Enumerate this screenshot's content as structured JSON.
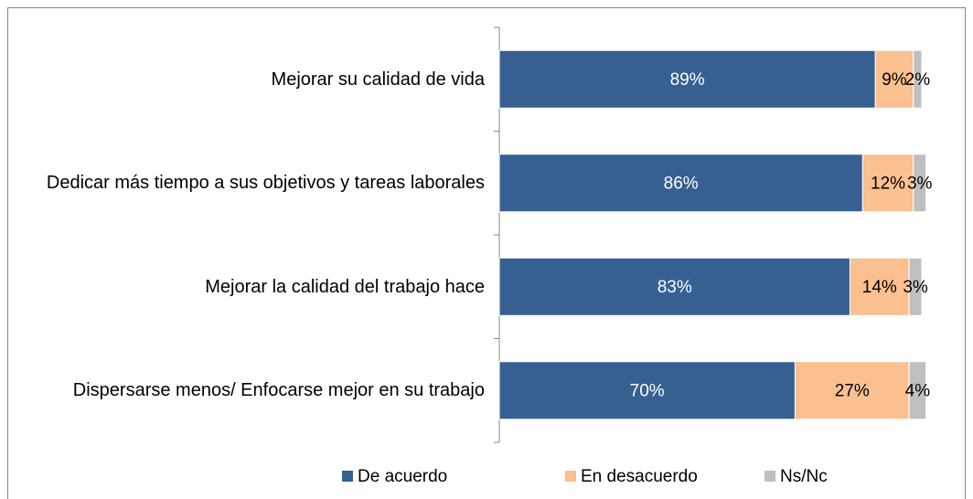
{
  "chart_data": {
    "type": "stacked_barh",
    "categories": [
      "Mejorar su calidad de vida",
      "Dedicar más tiempo a sus objetivos y tareas laborales",
      "Mejorar la calidad del trabajo hace",
      "Dispersarse menos/ Enfocarse mejor en su trabajo"
    ],
    "series": [
      {
        "name": "De acuerdo",
        "color": "#376092",
        "values": [
          89,
          86,
          83,
          70
        ],
        "value_labels": [
          "89%",
          "86%",
          "83%",
          "70%"
        ]
      },
      {
        "name": "En desacuerdo",
        "color": "#fac090",
        "values": [
          9,
          12,
          14,
          27
        ],
        "value_labels": [
          "9%",
          "12%",
          "14%",
          "27%"
        ]
      },
      {
        "name": "Ns/Nc",
        "color": "#bfbfbf",
        "values": [
          2,
          3,
          3,
          4
        ],
        "value_labels": [
          "2%",
          "3%",
          "3%",
          "4%"
        ]
      }
    ],
    "xlim": [
      0,
      100
    ],
    "legend": "bottom"
  }
}
